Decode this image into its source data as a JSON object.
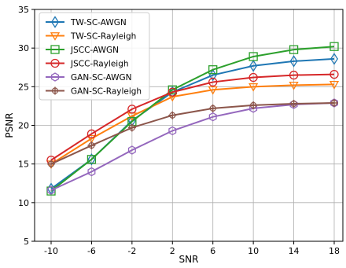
{
  "chart_data": {
    "type": "line",
    "title": "",
    "xlabel": "SNR",
    "ylabel": "PSNR",
    "categories": [
      "-10",
      "-6",
      "-2",
      "2",
      "6",
      "10",
      "14",
      "18"
    ],
    "ylim": [
      5,
      35
    ],
    "yticks": [
      5,
      10,
      15,
      20,
      25,
      30,
      35
    ],
    "grid": true,
    "legend_position": "top-left",
    "series": [
      {
        "name": "TW-SC-AWGN",
        "color": "#1f77b4",
        "marker": "diamond",
        "values": [
          11.8,
          15.6,
          20.6,
          24.3,
          26.5,
          27.7,
          28.3,
          28.6
        ]
      },
      {
        "name": "TW-SC-Rayleigh",
        "color": "#ff7f0e",
        "marker": "triangle-down",
        "values": [
          15.0,
          18.3,
          21.2,
          23.7,
          24.6,
          25.0,
          25.2,
          25.3
        ]
      },
      {
        "name": "JSCC-AWGN",
        "color": "#2ca02c",
        "marker": "square",
        "values": [
          11.5,
          15.6,
          20.5,
          24.6,
          27.2,
          28.9,
          29.8,
          30.2
        ]
      },
      {
        "name": "JSCC-Rayleigh",
        "color": "#d62728",
        "marker": "circle",
        "values": [
          15.5,
          18.9,
          22.1,
          24.3,
          25.6,
          26.2,
          26.5,
          26.6
        ]
      },
      {
        "name": "GAN-SC-AWGN",
        "color": "#9467bd",
        "marker": "hexagon",
        "values": [
          11.6,
          14.0,
          16.8,
          19.3,
          21.1,
          22.2,
          22.7,
          22.9
        ]
      },
      {
        "name": "GAN-SC-Rayleigh",
        "color": "#8c564b",
        "marker": "plus",
        "values": [
          15.0,
          17.4,
          19.7,
          21.3,
          22.2,
          22.6,
          22.8,
          22.9
        ]
      }
    ]
  }
}
